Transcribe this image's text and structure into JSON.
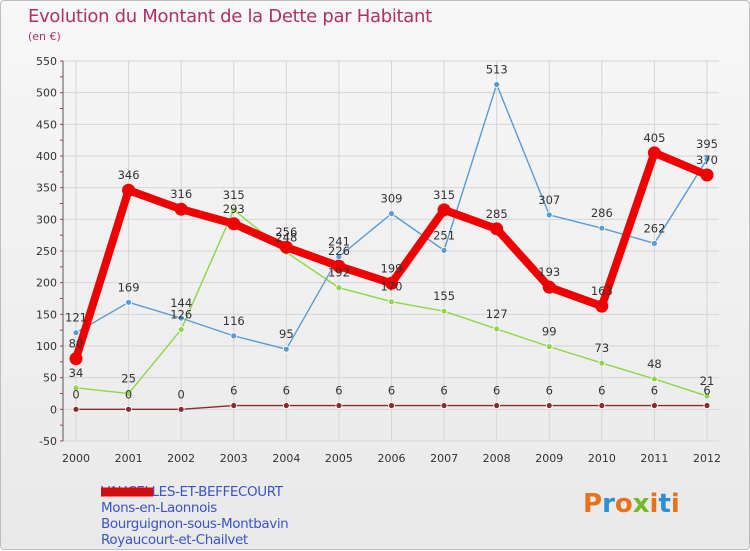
{
  "title": "Evolution du Montant de la Dette par Habitant",
  "subtitle": "(en €)",
  "logo": "Proxiti",
  "colors": {
    "title": "#b0306a",
    "axis_text": "#333333",
    "grid": "#d6d6d6"
  },
  "chart_data": {
    "type": "line",
    "title": "Evolution du Montant de la Dette par Habitant",
    "subtitle": "(en €)",
    "xlabel": "",
    "ylabel": "",
    "x": [
      "2000",
      "2001",
      "2002",
      "2003",
      "2004",
      "2005",
      "2006",
      "2007",
      "2008",
      "2009",
      "2010",
      "2011",
      "2012"
    ],
    "ylim": [
      -50,
      550
    ],
    "yticks": [
      "-50",
      "0",
      "50",
      "100",
      "150",
      "200",
      "250",
      "300",
      "350",
      "400",
      "450",
      "500",
      "550"
    ],
    "grid": true,
    "legend_position": "bottom-left",
    "series": [
      {
        "name": "VAUCELLES-ET-BEFFECOURT",
        "color": "#ee0000",
        "values": [
          80,
          346,
          316,
          293,
          256,
          226,
          199,
          315,
          285,
          193,
          163,
          405,
          370
        ],
        "labels": [
          "80",
          "346",
          "316",
          "293",
          "256",
          "226",
          "199",
          "315",
          "285",
          "193",
          "163",
          "405",
          "370"
        ]
      },
      {
        "name": "Mons-en-Laonnois",
        "color": "#5b9bd5",
        "values": [
          121,
          169,
          144,
          116,
          95,
          241,
          309,
          251,
          513,
          307,
          286,
          262,
          395
        ],
        "labels": [
          "121",
          "169",
          "144",
          "116",
          "95",
          "241",
          "309",
          "251",
          "513",
          "307",
          "286",
          "262",
          "395"
        ]
      },
      {
        "name": "Bourguignon-sous-Montbavin",
        "color": "#8fd64a",
        "values": [
          34,
          25,
          126,
          315,
          248,
          192,
          170,
          155,
          127,
          99,
          73,
          48,
          21
        ],
        "labels": [
          "34",
          "25",
          "126",
          "315",
          "248",
          "192",
          "170",
          "155",
          "127",
          "99",
          "73",
          "48",
          "21"
        ]
      },
      {
        "name": "Royaucourt-et-Chailvet",
        "color": "#8b2a2a",
        "values": [
          0,
          0,
          0,
          6,
          6,
          6,
          6,
          6,
          6,
          6,
          6,
          6,
          6
        ],
        "labels": [
          "0",
          "0",
          "0",
          "6",
          "6",
          "6",
          "6",
          "6",
          "6",
          "6",
          "6",
          "6",
          "6"
        ]
      }
    ]
  }
}
